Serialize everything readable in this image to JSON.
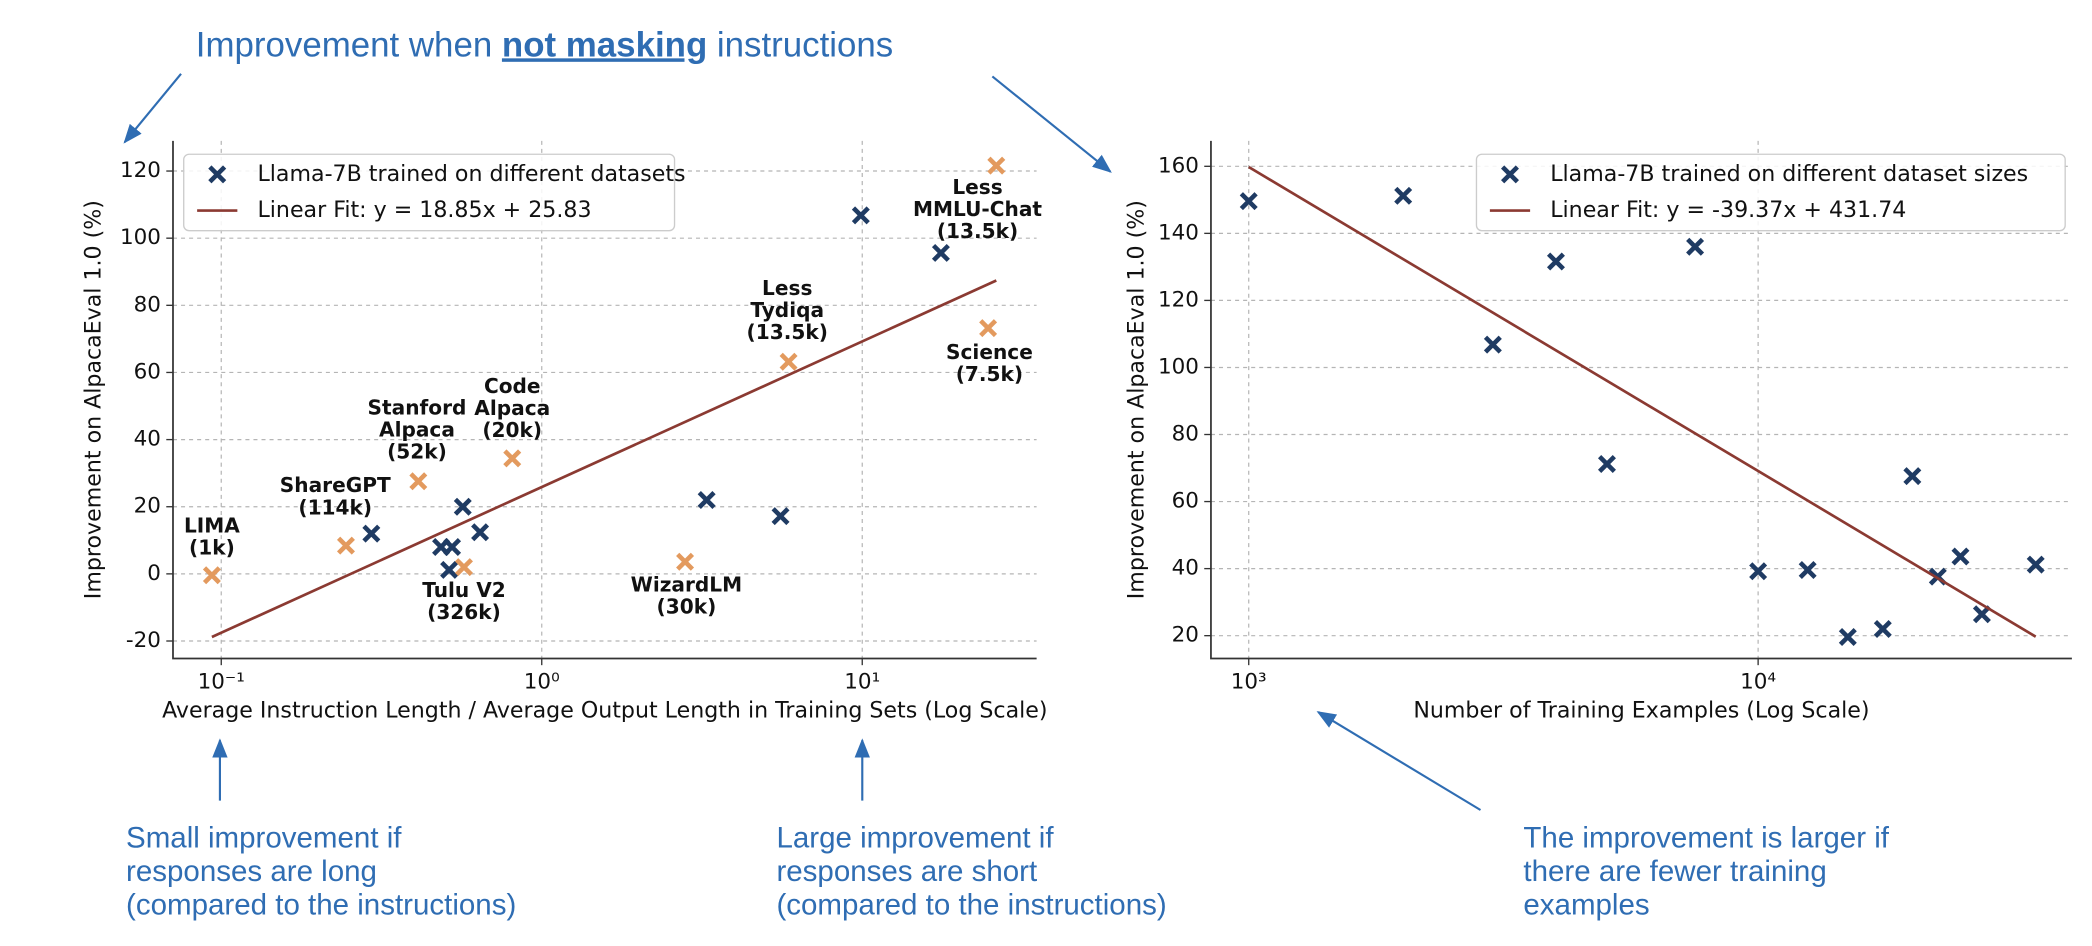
{
  "annotations": {
    "title": [
      "Improvement when ",
      "not masking",
      " instructions"
    ],
    "left_note": [
      "Small improvement if",
      "responses are long",
      "(compared to the instructions)"
    ],
    "middle_note": [
      "Large improvement if",
      "responses are short",
      "(compared to the instructions)"
    ],
    "right_note": [
      "The improvement is larger if",
      "there are fewer training",
      "examples"
    ]
  },
  "chart_data": [
    {
      "type": "scatter",
      "xscale": "log",
      "grid": true,
      "legend": "upper left",
      "xlabel": "Average Instruction Length / Average Output Length in Training Sets (Log Scale)",
      "ylabel": "Improvement on AlpacaEval 1.0 (%)",
      "xlim": [
        0.0707,
        35
      ],
      "ylim": [
        -25.2,
        129
      ],
      "xticks": [
        {
          "value": 0.1,
          "label": "10⁻¹"
        },
        {
          "value": 1,
          "label": "10⁰"
        },
        {
          "value": 10,
          "label": "10¹"
        }
      ],
      "yticks": [
        -20,
        0,
        20,
        40,
        60,
        80,
        100,
        120
      ],
      "series": [
        {
          "name": "Llama-7B trained on different datasets",
          "type": "scatter",
          "color": "#1f3b63",
          "x": [
            0.0935,
            0.245,
            0.294,
            0.412,
            0.485,
            0.514,
            0.525,
            0.567,
            0.572,
            0.642,
            0.809,
            2.8,
            3.27,
            5.56,
            5.89,
            9.9,
            17.6,
            24.7,
            26.2
          ],
          "values": [
            -0.4,
            8.4,
            12,
            27.6,
            8,
            1.2,
            8,
            20,
            2,
            12.4,
            34.4,
            3.6,
            22,
            17.2,
            63.2,
            106.8,
            95.6,
            73.2,
            121.6
          ],
          "point_colors": [
            "#e39a5e",
            "#e39a5e",
            "#1f3b63",
            "#e39a5e",
            "#1f3b63",
            "#1f3b63",
            "#1f3b63",
            "#1f3b63",
            "#e39a5e",
            "#1f3b63",
            "#e39a5e",
            "#e39a5e",
            "#1f3b63",
            "#1f3b63",
            "#e39a5e",
            "#1f3b63",
            "#1f3b63",
            "#e39a5e",
            "#e39a5e"
          ],
          "point_labels": [
            [
              "LIMA",
              "(1k)"
            ],
            [
              "ShareGPT",
              "(114k)"
            ],
            null,
            [
              "Stanford",
              "Alpaca",
              "(52k)"
            ],
            null,
            null,
            null,
            null,
            [
              "Tulu V2",
              "(326k)"
            ],
            null,
            [
              "Code",
              "Alpaca",
              "(20k)"
            ],
            [
              "WizardLM",
              "(30k)"
            ],
            null,
            null,
            [
              "Less",
              "Tydiqa",
              "(13.5k)"
            ],
            null,
            null,
            [
              "Science",
              "(7.5k)"
            ],
            [
              "Less",
              "MMLU-Chat",
              "(13.5k)"
            ]
          ]
        },
        {
          "name": "Linear Fit: y = 18.85x + 25.83",
          "type": "line",
          "color": "#8b3a32",
          "x": [
            0.0935,
            26.2
          ],
          "values": [
            -18.8,
            87.4
          ]
        }
      ]
    },
    {
      "type": "scatter",
      "xscale": "log",
      "grid": true,
      "legend": "upper right",
      "xlabel": "Number of Training Examples (Log Scale)",
      "ylabel": "Improvement on AlpacaEval 1.0 (%)",
      "xlim": [
        843,
        41300
      ],
      "ylim": [
        13.2,
        167.6
      ],
      "xticks": [
        {
          "value": 1000,
          "label": "10³"
        },
        {
          "value": 10000,
          "label": "10⁴"
        }
      ],
      "yticks": [
        20,
        40,
        60,
        80,
        100,
        120,
        140,
        160
      ],
      "series": [
        {
          "name": "Llama-7B trained on different dataset sizes",
          "type": "scatter",
          "color": "#1f3b63",
          "x": [
            1000,
            2010,
            3015,
            4010,
            5050,
            7520,
            10000,
            12510,
            15000,
            17570,
            20080,
            22530,
            24960,
            27500,
            35070
          ],
          "values": [
            149.6,
            151.2,
            106.8,
            131.6,
            71.2,
            136,
            39.2,
            39.6,
            19.6,
            22,
            67.6,
            37.6,
            43.6,
            26.4,
            41.2
          ]
        },
        {
          "name": "Linear Fit: y = -39.37x + 431.74",
          "type": "line",
          "color": "#8b3a32",
          "x": [
            1000,
            35070
          ],
          "values": [
            159.8,
            19.7
          ]
        }
      ]
    }
  ]
}
